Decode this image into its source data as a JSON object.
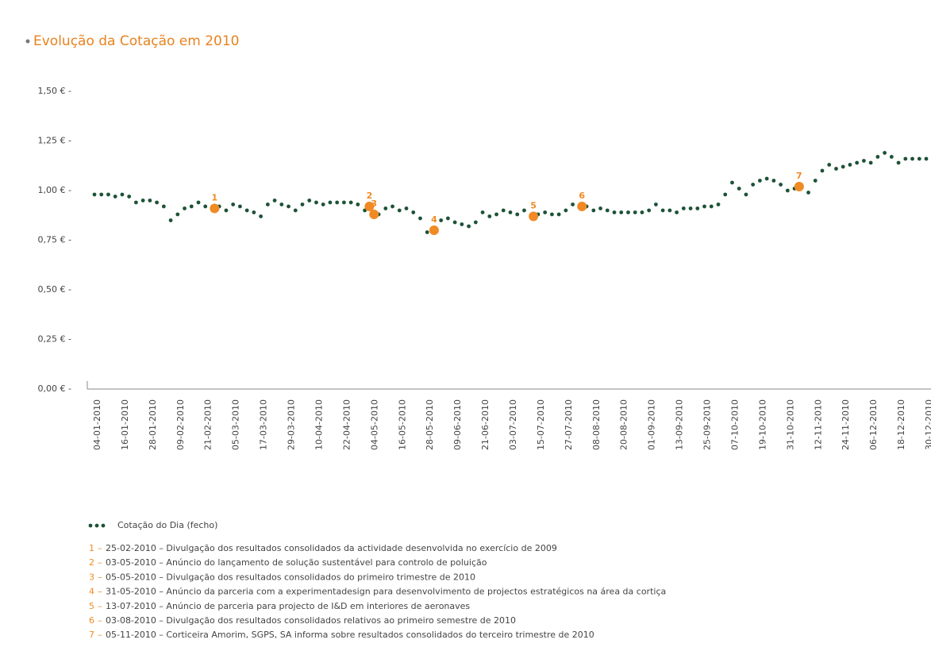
{
  "chart_data": {
    "type": "scatter",
    "title": "Evolução da Cotação em 2010",
    "series": [
      {
        "name": "Cotação do Dia (fecho)",
        "color": "#1d5236",
        "x": [
          "04-01-2010",
          "07-01-2010",
          "10-01-2010",
          "13-01-2010",
          "16-01-2010",
          "19-01-2010",
          "22-01-2010",
          "25-01-2010",
          "28-01-2010",
          "31-01-2010",
          "03-02-2010",
          "06-02-2010",
          "09-02-2010",
          "12-02-2010",
          "15-02-2010",
          "18-02-2010",
          "21-02-2010",
          "24-02-2010",
          "27-02-2010",
          "02-03-2010",
          "05-03-2010",
          "08-03-2010",
          "11-03-2010",
          "14-03-2010",
          "17-03-2010",
          "20-03-2010",
          "23-03-2010",
          "26-03-2010",
          "29-03-2010",
          "01-04-2010",
          "04-04-2010",
          "07-04-2010",
          "10-04-2010",
          "13-04-2010",
          "16-04-2010",
          "19-04-2010",
          "22-04-2010",
          "25-04-2010",
          "28-04-2010",
          "01-05-2010",
          "04-05-2010",
          "07-05-2010",
          "10-05-2010",
          "13-05-2010",
          "16-05-2010",
          "19-05-2010",
          "22-05-2010",
          "25-05-2010",
          "28-05-2010",
          "31-05-2010",
          "03-06-2010",
          "06-06-2010",
          "09-06-2010",
          "12-06-2010",
          "15-06-2010",
          "18-06-2010",
          "21-06-2010",
          "24-06-2010",
          "27-06-2010",
          "30-06-2010",
          "03-07-2010",
          "06-07-2010",
          "09-07-2010",
          "12-07-2010",
          "15-07-2010",
          "18-07-2010",
          "21-07-2010",
          "24-07-2010",
          "27-07-2010",
          "30-07-2010",
          "02-08-2010",
          "05-08-2010",
          "08-08-2010",
          "11-08-2010",
          "14-08-2010",
          "17-08-2010",
          "20-08-2010",
          "23-08-2010",
          "26-08-2010",
          "29-08-2010",
          "01-09-2010",
          "04-09-2010",
          "07-09-2010",
          "10-09-2010",
          "13-09-2010",
          "16-09-2010",
          "19-09-2010",
          "22-09-2010",
          "25-09-2010",
          "28-09-2010",
          "01-10-2010",
          "04-10-2010",
          "07-10-2010",
          "10-10-2010",
          "13-10-2010",
          "16-10-2010",
          "19-10-2010",
          "22-10-2010",
          "25-10-2010",
          "28-10-2010",
          "31-10-2010",
          "03-11-2010",
          "06-11-2010",
          "09-11-2010",
          "12-11-2010",
          "15-11-2010",
          "18-11-2010",
          "21-11-2010",
          "24-11-2010",
          "27-11-2010",
          "30-11-2010",
          "03-12-2010",
          "06-12-2010",
          "09-12-2010",
          "12-12-2010",
          "15-12-2010",
          "18-12-2010",
          "21-12-2010",
          "24-12-2010",
          "27-12-2010",
          "30-12-2010"
        ],
        "values": [
          0.98,
          0.98,
          0.98,
          0.97,
          0.98,
          0.97,
          0.94,
          0.95,
          0.95,
          0.94,
          0.92,
          0.85,
          0.88,
          0.91,
          0.92,
          0.94,
          0.92,
          0.91,
          0.92,
          0.9,
          0.93,
          0.92,
          0.9,
          0.89,
          0.87,
          0.93,
          0.95,
          0.93,
          0.92,
          0.9,
          0.93,
          0.95,
          0.94,
          0.93,
          0.94,
          0.94,
          0.94,
          0.94,
          0.93,
          0.9,
          0.92,
          0.88,
          0.91,
          0.92,
          0.9,
          0.91,
          0.89,
          0.86,
          0.79,
          0.8,
          0.85,
          0.86,
          0.84,
          0.83,
          0.82,
          0.84,
          0.89,
          0.87,
          0.88,
          0.9,
          0.89,
          0.88,
          0.9,
          0.87,
          0.88,
          0.89,
          0.88,
          0.88,
          0.9,
          0.93,
          0.92,
          0.92,
          0.9,
          0.91,
          0.9,
          0.89,
          0.89,
          0.89,
          0.89,
          0.89,
          0.9,
          0.93,
          0.9,
          0.9,
          0.89,
          0.91,
          0.91,
          0.91,
          0.92,
          0.92,
          0.93,
          0.98,
          1.04,
          1.01,
          0.98,
          1.03,
          1.05,
          1.06,
          1.05,
          1.03,
          1.0,
          1.01,
          1.02,
          0.99,
          1.05,
          1.1,
          1.13,
          1.11,
          1.12,
          1.13,
          1.14,
          1.15,
          1.14,
          1.17,
          1.19,
          1.17,
          1.14,
          1.16,
          1.16,
          1.16,
          1.16
        ]
      }
    ],
    "annotations": [
      {
        "label": "1",
        "x": "25-02-2010",
        "value": 0.91,
        "text": "25-02-2010 – Divulgação dos resultados consolidados da actividade desenvolvida no exercício de 2009"
      },
      {
        "label": "2",
        "x": "03-05-2010",
        "value": 0.92,
        "text": "03-05-2010 – Anúncio do lançamento de solução sustentável para controlo de poluição"
      },
      {
        "label": "3",
        "x": "05-05-2010",
        "value": 0.88,
        "text": "05-05-2010 – Divulgação dos resultados consolidados do primeiro trimestre de 2010"
      },
      {
        "label": "4",
        "x": "31-05-2010",
        "value": 0.8,
        "text": "31-05-2010 – Anúncio da parceria com a experimentadesign para desenvolvimento de projectos estratégicos na área da cortiça"
      },
      {
        "label": "5",
        "x": "13-07-2010",
        "value": 0.87,
        "text": "13-07-2010 – Anúncio de parceria para projecto de I&D em interiores de aeronaves"
      },
      {
        "label": "6",
        "x": "03-08-2010",
        "value": 0.92,
        "text": "03-08-2010 – Divulgação dos resultados consolidados relativos ao primeiro semestre de 2010"
      },
      {
        "label": "7",
        "x": "05-11-2010",
        "value": 1.02,
        "text": "05-11-2010 – Corticeira Amorim, SGPS, SA informa sobre resultados consolidados do terceiro trimestre de 2010"
      }
    ],
    "annotation_color": "#f08a24",
    "xlim": [
      "04-01-2010",
      "30-12-2010"
    ],
    "xticks": [
      "04-01-2010",
      "16-01-2010",
      "28-01-2010",
      "09-02-2010",
      "21-02-2010",
      "05-03-2010",
      "17-03-2010",
      "29-03-2010",
      "10-04-2010",
      "22-04-2010",
      "04-05-2010",
      "16-05-2010",
      "28-05-2010",
      "09-06-2010",
      "21-06-2010",
      "03-07-2010",
      "15-07-2010",
      "27-07-2010",
      "08-08-2010",
      "20-08-2010",
      "01-09-2010",
      "13-09-2010",
      "25-09-2010",
      "07-10-2010",
      "19-10-2010",
      "31-10-2010",
      "12-11-2010",
      "24-11-2010",
      "06-12-2010",
      "18-12-2010",
      "30-12-2010"
    ],
    "ylim": [
      0,
      1.5
    ],
    "yticks": [
      {
        "value": 0,
        "label": "0,00 € -"
      },
      {
        "value": 0.25,
        "label": "0,25 € -"
      },
      {
        "value": 0.5,
        "label": "0,50 € -"
      },
      {
        "value": 0.75,
        "label": "0,75 € -"
      },
      {
        "value": 1,
        "label": "1,00 € -"
      },
      {
        "value": 1.25,
        "label": "1,25 € -"
      },
      {
        "value": 1.5,
        "label": "1,50 € -"
      }
    ],
    "grid": false
  }
}
